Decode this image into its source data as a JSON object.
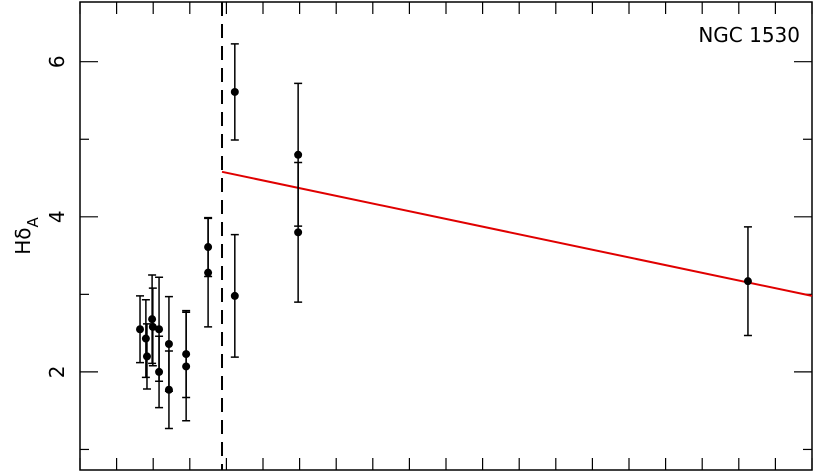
{
  "chart_data": {
    "type": "scatter",
    "annotation": "NGC 1530",
    "y_label": {
      "main": "Hδ",
      "subscript": "A"
    },
    "xlim": [
      0,
      20
    ],
    "ylim": [
      0.735,
      6.77
    ],
    "xticks": [
      0,
      1,
      2,
      3,
      4,
      5,
      6,
      7,
      8,
      9,
      10,
      11,
      12,
      13,
      14,
      15,
      16,
      17,
      18,
      19,
      20
    ],
    "yticks": [
      2,
      4,
      6
    ],
    "yminor": [
      1,
      3,
      5
    ],
    "series": [
      {
        "color": "#000000",
        "x": [
          1.64,
          1.8,
          1.83,
          1.97,
          1.99,
          2.16,
          2.16,
          2.43,
          2.43,
          2.9,
          2.9,
          3.5,
          3.5,
          4.23,
          4.23,
          5.96,
          5.96,
          18.25
        ],
        "values": [
          2.55,
          2.43,
          2.2,
          2.68,
          2.58,
          2.55,
          2.0,
          2.36,
          1.77,
          2.23,
          2.07,
          3.61,
          3.28,
          5.61,
          2.98,
          4.8,
          3.8,
          3.17
        ],
        "errors": [
          0.43,
          0.5,
          0.42,
          0.57,
          0.5,
          0.67,
          0.46,
          0.61,
          0.5,
          0.56,
          0.7,
          0.38,
          0.7,
          0.62,
          0.79,
          0.92,
          0.9,
          0.7
        ]
      }
    ],
    "vline": {
      "x": 3.88,
      "color": "#000000"
    },
    "fit": {
      "color": "#e00000",
      "x": [
        3.88,
        20
      ],
      "values": [
        4.58,
        2.98
      ]
    }
  }
}
